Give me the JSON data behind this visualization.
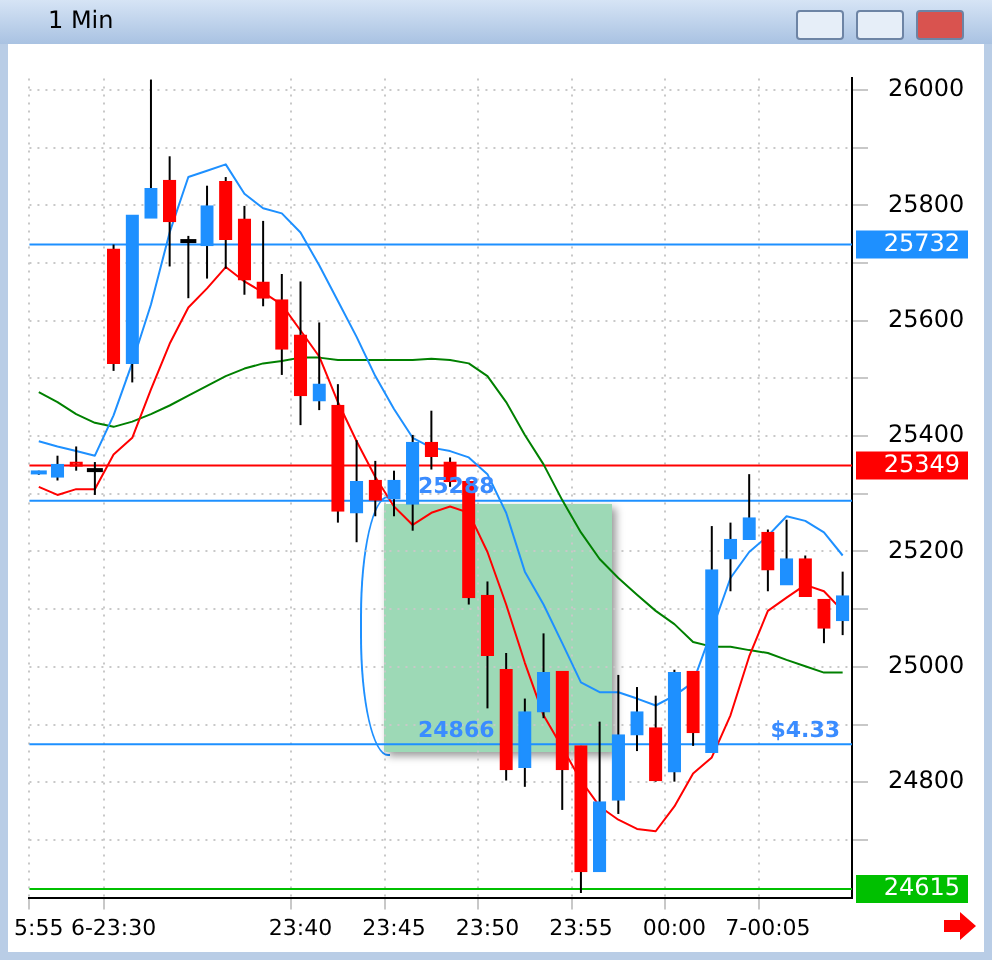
{
  "chart_data": {
    "type": "candlestick",
    "title": "1 Min",
    "categories": [
      "5:55",
      null,
      null,
      null,
      "6-23:30",
      null,
      null,
      null,
      null,
      null,
      null,
      null,
      null,
      null,
      "23:40",
      null,
      null,
      null,
      null,
      "23:45",
      null,
      null,
      null,
      null,
      "23:50",
      null,
      null,
      null,
      null,
      "23:55",
      null,
      null,
      null,
      null,
      "00:00",
      null,
      null,
      null,
      null,
      "7-00:05",
      null,
      null,
      null,
      null
    ],
    "ohlc": [
      [
        25337,
        25340,
        25333,
        25337
      ],
      [
        25329,
        25366,
        25323,
        25351
      ],
      [
        25355,
        25382,
        25340,
        25348
      ],
      [
        25341,
        25355,
        25298,
        25341
      ],
      [
        25724,
        25732,
        25513,
        25526
      ],
      [
        25526,
        25783,
        25493,
        25783
      ],
      [
        25778,
        26018,
        25778,
        25829
      ],
      [
        25843,
        25885,
        25694,
        25772
      ],
      [
        25738,
        25747,
        25639,
        25738
      ],
      [
        25730,
        25834,
        25673,
        25799
      ],
      [
        25841,
        25849,
        25690,
        25741
      ],
      [
        25776,
        25799,
        25645,
        25671
      ],
      [
        25667,
        25773,
        25625,
        25639
      ],
      [
        25636,
        25681,
        25506,
        25551
      ],
      [
        25575,
        25668,
        25419,
        25470
      ],
      [
        25461,
        25597,
        25445,
        25490
      ],
      [
        25453,
        25490,
        25250,
        25270
      ],
      [
        25267,
        25393,
        25216,
        25321
      ],
      [
        25323,
        25357,
        25261,
        25289
      ],
      [
        25291,
        25340,
        25261,
        25323
      ],
      [
        25282,
        25402,
        25236,
        25389
      ],
      [
        25389,
        25444,
        25342,
        25365
      ],
      [
        25355,
        25363,
        25312,
        25321
      ],
      [
        25321,
        25321,
        25108,
        25120
      ],
      [
        25124,
        25148,
        24928,
        25020
      ],
      [
        24995,
        25024,
        24803,
        24822
      ],
      [
        24826,
        24945,
        24792,
        24922
      ],
      [
        24922,
        25058,
        24911,
        24990
      ],
      [
        24992,
        24992,
        24752,
        24822
      ],
      [
        24863,
        24863,
        24608,
        24645
      ],
      [
        24645,
        24905,
        24645,
        24766
      ],
      [
        24769,
        24986,
        24745,
        24882
      ],
      [
        24882,
        24965,
        24854,
        24922
      ],
      [
        24894,
        24950,
        24801,
        24803
      ],
      [
        24818,
        24995,
        24801,
        24990
      ],
      [
        24992,
        24992,
        24863,
        24886
      ],
      [
        24852,
        25244,
        24852,
        25168
      ],
      [
        25187,
        25250,
        25131,
        25221
      ],
      [
        25221,
        25334,
        25221,
        25258
      ],
      [
        25233,
        25238,
        25131,
        25168
      ],
      [
        25142,
        25255,
        25142,
        25187
      ],
      [
        25187,
        25193,
        25122,
        25122
      ],
      [
        25117,
        25117,
        25041,
        25067
      ],
      [
        25080,
        25165,
        25055,
        25123
      ]
    ],
    "colors": [
      "#1e90ff",
      "#1e90ff",
      "#ff0000",
      "#000000",
      "#ff0000",
      "#1e90ff",
      "#1e90ff",
      "#ff0000",
      "#000000",
      "#1e90ff",
      "#ff0000",
      "#ff0000",
      "#ff0000",
      "#ff0000",
      "#ff0000",
      "#1e90ff",
      "#ff0000",
      "#1e90ff",
      "#ff0000",
      "#1e90ff",
      "#1e90ff",
      "#ff0000",
      "#ff0000",
      "#ff0000",
      "#ff0000",
      "#ff0000",
      "#1e90ff",
      "#1e90ff",
      "#ff0000",
      "#ff0000",
      "#1e90ff",
      "#1e90ff",
      "#1e90ff",
      "#ff0000",
      "#1e90ff",
      "#ff0000",
      "#1e90ff",
      "#1e90ff",
      "#1e90ff",
      "#ff0000",
      "#1e90ff",
      "#ff0000",
      "#ff0000",
      "#1e90ff"
    ],
    "series": [
      {
        "type": "line",
        "color": "#ff0000",
        "values": [
          25312,
          25298,
          25308,
          25308,
          25368,
          25397,
          25481,
          25560,
          25623,
          25656,
          25693,
          25668,
          25649,
          25628,
          25583,
          25538,
          25459,
          25391,
          25329,
          25278,
          25246,
          25267,
          25278,
          25267,
          25199,
          25108,
          25007,
          24916,
          24860,
          24803,
          24758,
          24735,
          24719,
          24715,
          24758,
          24815,
          24843,
          24916,
          25018,
          25097,
          25120,
          25142,
          25131,
          25097
        ]
      },
      {
        "type": "line",
        "color": "#1e90ff",
        "values": [
          25391,
          25382,
          25374,
          25366,
          25436,
          25527,
          25628,
          25753,
          25849,
          25860,
          25871,
          25820,
          25795,
          25786,
          25753,
          25696,
          25634,
          25572,
          25504,
          25447,
          25397,
          25380,
          25374,
          25363,
          25334,
          25267,
          25165,
          25108,
          25041,
          24973,
          24956,
          24956,
          24945,
          24933,
          24950,
          24973,
          25063,
          25154,
          25199,
          25227,
          25261,
          25253,
          25233,
          25193
        ]
      },
      {
        "type": "line",
        "color": "#008000",
        "values": [
          25476,
          25459,
          25438,
          25423,
          25416,
          25425,
          25438,
          25453,
          25470,
          25487,
          25504,
          25517,
          25526,
          25530,
          25536,
          25536,
          25532,
          25532,
          25532,
          25532,
          25532,
          25534,
          25532,
          25526,
          25504,
          25459,
          25402,
          25351,
          25289,
          25233,
          25187,
          25154,
          25125,
          25097,
          25074,
          25043,
          25035,
          25035,
          25029,
          25024,
          25012,
          25001,
          24990,
          24990
        ]
      }
    ],
    "ylim": [
      24600,
      26020
    ],
    "yticks": [
      {
        "value": 24700,
        "label": null
      },
      24800,
      {
        "value": 24900,
        "label": null
      },
      25000,
      {
        "value": 25100,
        "label": null
      },
      25200,
      {
        "value": 25300,
        "label": null
      },
      25400,
      {
        "value": 25500,
        "label": null
      },
      25600,
      {
        "value": 25700,
        "label": null
      },
      25800,
      {
        "value": 25900,
        "label": null
      },
      26000
    ],
    "grid": true,
    "legend": false,
    "marker": "none",
    "ref_lines": [
      {
        "axis": "y",
        "value": 25732,
        "label": "25732",
        "color": "#1e90ff"
      },
      {
        "axis": "y",
        "value": 25349,
        "label": "25349",
        "color": "#ff0000"
      },
      {
        "axis": "y",
        "value": 25288,
        "color": "#1e90ff"
      },
      {
        "axis": "y",
        "value": 24866,
        "color": "#1e90ff"
      },
      {
        "axis": "y",
        "value": 24615,
        "label": "24615",
        "color": "#00c000"
      }
    ],
    "annotations": [
      {
        "text": "25288",
        "x": "23:45",
        "y": 25288
      },
      {
        "text": "24866",
        "x": "23:45",
        "y": 24866
      },
      {
        "text": "$4.33",
        "y": 24866
      }
    ]
  }
}
